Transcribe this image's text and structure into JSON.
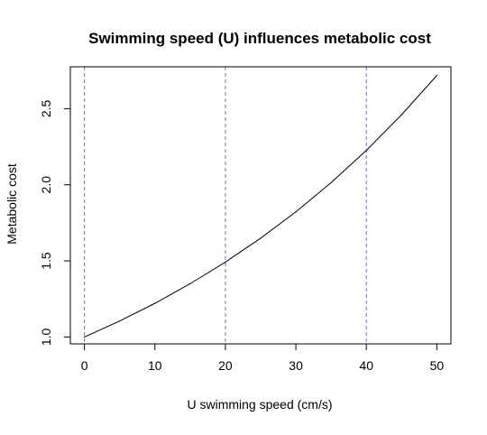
{
  "chart_data": {
    "type": "line",
    "title": "Swimming speed (U) influences metabolic cost",
    "xlabel": "U swimming speed (cm/s)",
    "ylabel": "Metabolic cost",
    "xlim": [
      -2,
      52
    ],
    "ylim": [
      0.955,
      2.775
    ],
    "x_ticks": [
      0,
      10,
      20,
      30,
      40,
      50
    ],
    "y_ticks": [
      1.0,
      1.5,
      2.0,
      2.5
    ],
    "x_tick_labels": [
      "0",
      "10",
      "20",
      "30",
      "40",
      "50"
    ],
    "y_tick_labels": [
      "1.0",
      "1.5",
      "2.0",
      "2.5"
    ],
    "grid": false,
    "legend": "none",
    "series": [
      {
        "color": "#000000",
        "x": [
          0,
          5,
          10,
          15,
          20,
          25,
          30,
          35,
          40,
          45,
          50
        ],
        "y": [
          1.0,
          1.105,
          1.221,
          1.35,
          1.492,
          1.649,
          1.822,
          2.014,
          2.226,
          2.46,
          2.718
        ]
      }
    ],
    "reference_lines": {
      "orientation": "vertical",
      "style": "dashed",
      "color": "#6a6ad8",
      "x": [
        0,
        20,
        40
      ]
    }
  }
}
